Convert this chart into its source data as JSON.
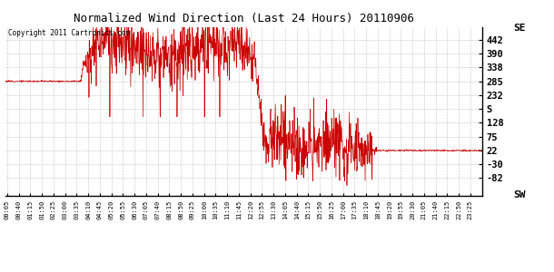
{
  "title": "Normalized Wind Direction (Last 24 Hours) 20110906",
  "copyright": "Copyright 2011 Cartronics.com",
  "line_color": "#cc0000",
  "bg_color": "#ffffff",
  "plot_bg_color": "#ffffff",
  "grid_color": "#aaaaaa",
  "ytick_positions": [
    442,
    390,
    338,
    285,
    232,
    180,
    128,
    75,
    22,
    -30,
    -82
  ],
  "ytick_labels": [
    "442",
    "390",
    "338",
    "285",
    "232",
    "S",
    "128",
    "75",
    "22",
    "-30",
    "-82"
  ],
  "ylim": [
    -150,
    490
  ],
  "xlim": [
    0,
    1440
  ],
  "se_label": "SE",
  "sw_label": "SW"
}
